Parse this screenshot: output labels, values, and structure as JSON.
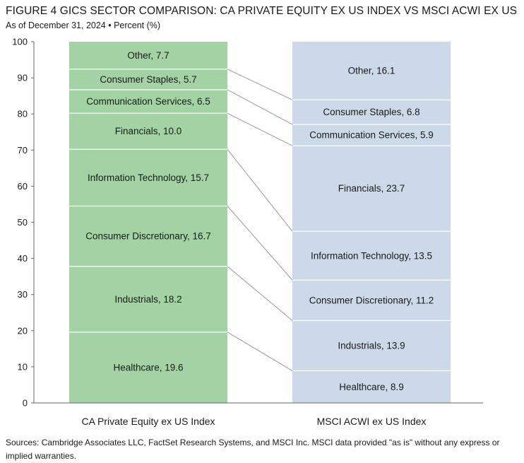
{
  "title": "FIGURE 4   GICS SECTOR COMPARISON: CA PRIVATE EQUITY EX US INDEX VS MSCI ACWI EX US",
  "subtitle": "As of December 31, 2024 • Percent (%)",
  "sources": "Sources: Cambridge Associates LLC, FactSet Research Systems, and MSCI Inc. MSCI data provided \"as is\" without any express or implied warranties.",
  "chart_data": {
    "type": "bar",
    "subtype": "100% stacked columns with connector lines",
    "categories": [
      "CA Private Equity ex US Index",
      "MSCI ACWI ex US Index"
    ],
    "ylim": [
      0,
      100
    ],
    "yticks": [
      0,
      10,
      20,
      30,
      40,
      50,
      60,
      70,
      80,
      90,
      100
    ],
    "grid": false,
    "stack_order_bottom_to_top": [
      "Healthcare",
      "Industrials",
      "Consumer Discretionary",
      "Information Technology",
      "Financials",
      "Communication Services",
      "Consumer Staples",
      "Other"
    ],
    "series": [
      {
        "name": "Healthcare",
        "values": [
          19.6,
          8.9
        ],
        "labels": [
          "Healthcare, 19.6",
          "Healthcare, 8.9"
        ]
      },
      {
        "name": "Industrials",
        "values": [
          18.2,
          13.9
        ],
        "labels": [
          "Industrials, 18.2",
          "Industrials, 13.9"
        ]
      },
      {
        "name": "Consumer Discretionary",
        "values": [
          16.7,
          11.2
        ],
        "labels": [
          "Consumer Discretionary, 16.7",
          "Consumer Discretionary, 11.2"
        ]
      },
      {
        "name": "Information Technology",
        "values": [
          15.7,
          13.5
        ],
        "labels": [
          "Information Technology, 15.7",
          "Information Technology, 13.5"
        ]
      },
      {
        "name": "Financials",
        "values": [
          10.0,
          23.7
        ],
        "labels": [
          "Financials, 10.0",
          "Financials, 23.7"
        ]
      },
      {
        "name": "Communication Services",
        "values": [
          6.5,
          5.9
        ],
        "labels": [
          "Communication Services, 6.5",
          "Communication Services, 5.9"
        ]
      },
      {
        "name": "Consumer Staples",
        "values": [
          5.7,
          6.8
        ],
        "labels": [
          "Consumer Staples, 5.7",
          "Consumer Staples, 6.8"
        ]
      },
      {
        "name": "Other",
        "values": [
          7.7,
          16.1
        ],
        "labels": [
          "Other, 7.7",
          "Other, 16.1"
        ]
      }
    ],
    "colors": {
      "left_bar": "#a3d3a5",
      "right_bar": "#ccd9e8",
      "connector": "#9a9a9a",
      "divider": "#ffffff"
    }
  }
}
